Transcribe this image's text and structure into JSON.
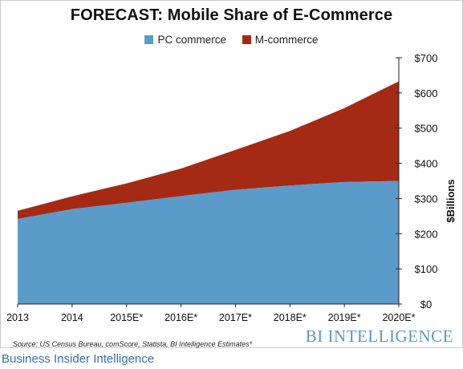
{
  "chart_data": {
    "type": "area",
    "stacked": true,
    "title": "FORECAST: Mobile Share of E-Commerce",
    "categories": [
      "2013",
      "2014",
      "2015E*",
      "2016E*",
      "2017E*",
      "2018E*",
      "2019E*",
      "2020E*"
    ],
    "series": [
      {
        "name": "PC commerce",
        "color": "#5b9bc9",
        "values": [
          242,
          270,
          288,
          307,
          325,
          337,
          347,
          350
        ]
      },
      {
        "name": "M-commerce",
        "color": "#a52a14",
        "values": [
          23,
          36,
          55,
          78,
          113,
          155,
          210,
          283
        ]
      }
    ],
    "ylabel": "$Billions",
    "ylim": [
      0,
      700
    ],
    "yticks": [
      "$0",
      "$100",
      "$200",
      "$300",
      "$400",
      "$500",
      "$600",
      "$700"
    ],
    "grid": false,
    "legend_position": "top-center",
    "source": "Source: US Census Bureau, comScore, Statista, BI Intelligence Estimates*"
  },
  "brand": "BI INTELLIGENCE",
  "caption": "Business Insider Intelligence"
}
